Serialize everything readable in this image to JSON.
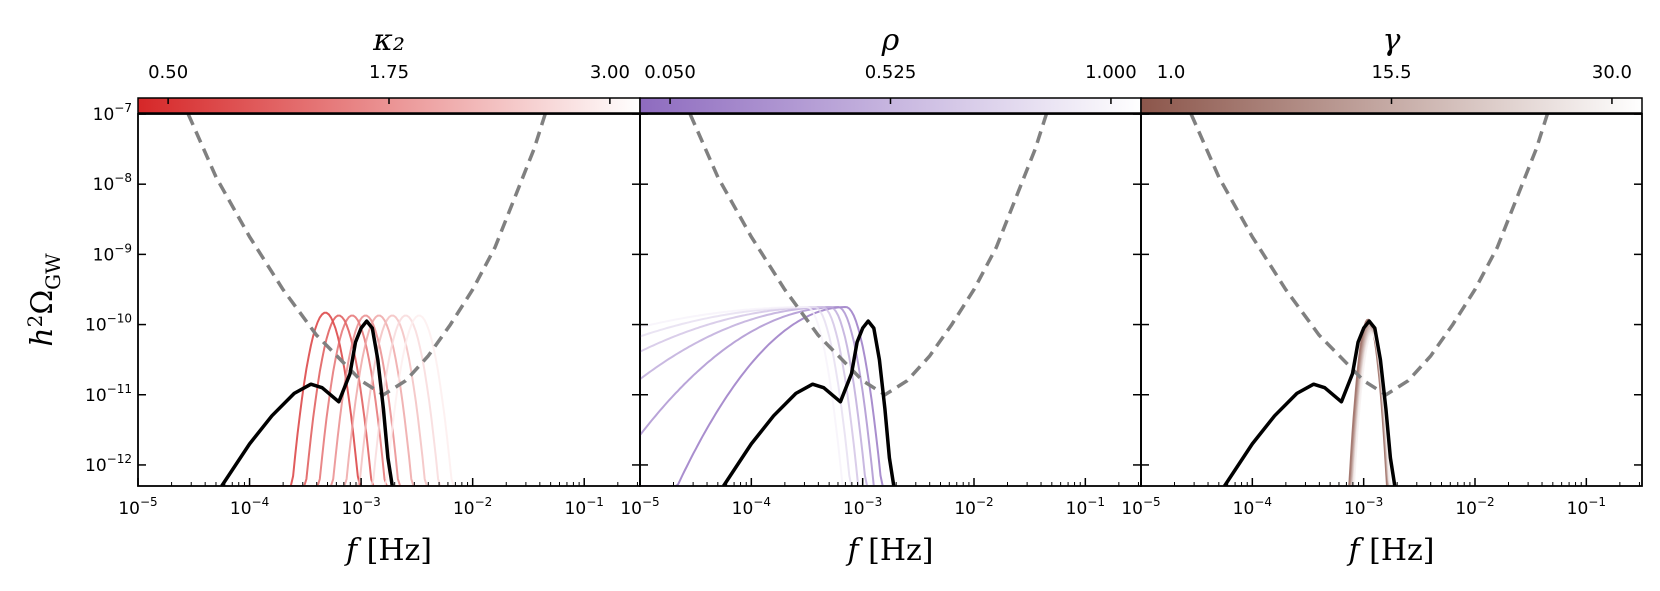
{
  "chart_data": {
    "type": "line",
    "ylabel": "h²Ω_GW",
    "xlabel_var": "f",
    "xlabel_unit": "[Hz]",
    "xscale": "log",
    "yscale": "log",
    "xlim_log10": [
      -5,
      -0.5
    ],
    "ylim_log10": [
      -12.3,
      -7
    ],
    "x_ticks": [
      {
        "base": "10",
        "exp": "−5"
      },
      {
        "base": "10",
        "exp": "−4"
      },
      {
        "base": "10",
        "exp": "−3"
      },
      {
        "base": "10",
        "exp": "−2"
      },
      {
        "base": "10",
        "exp": "−1"
      }
    ],
    "y_ticks": [
      {
        "base": "10",
        "exp": "−7"
      },
      {
        "base": "10",
        "exp": "−8"
      },
      {
        "base": "10",
        "exp": "−9"
      },
      {
        "base": "10",
        "exp": "−10"
      },
      {
        "base": "10",
        "exp": "−11"
      },
      {
        "base": "10",
        "exp": "−12"
      }
    ],
    "sensitivity_curve": {
      "style": "dashed",
      "color": "#808080",
      "log10_f": [
        -4.55,
        -4.3,
        -4.0,
        -3.7,
        -3.4,
        -3.0,
        -2.8,
        -2.6,
        -2.4,
        -2.2,
        -2.0,
        -1.8,
        -1.6,
        -1.45,
        -1.35
      ],
      "log10_omega": [
        -7.0,
        -7.9,
        -8.75,
        -9.5,
        -10.15,
        -10.8,
        -11.0,
        -10.8,
        -10.45,
        -10.0,
        -9.5,
        -8.9,
        -8.1,
        -7.5,
        -7.0
      ]
    },
    "benchmark_curve": {
      "color": "#000000",
      "log10_f": [
        -4.25,
        -4.0,
        -3.8,
        -3.6,
        -3.45,
        -3.35,
        -3.2,
        -3.1,
        -3.05,
        -3.0,
        -2.95,
        -2.9,
        -2.85,
        -2.8,
        -2.76,
        -2.72
      ],
      "log10_omega": [
        -12.3,
        -11.7,
        -11.3,
        -10.98,
        -10.85,
        -10.9,
        -11.1,
        -10.7,
        -10.25,
        -10.05,
        -9.95,
        -10.05,
        -10.5,
        -11.2,
        -11.9,
        -12.3
      ]
    },
    "panels": [
      {
        "parameter": "κ₂",
        "colorbar_ticks": [
          "0.50",
          "1.75",
          "3.00"
        ],
        "colorbar_range": [
          0.5,
          3.0
        ],
        "color_start": "#d62728",
        "color_end": "#ffffff",
        "variant_family": "shifted-peak",
        "variant_count": 8
      },
      {
        "parameter": "ρ",
        "colorbar_ticks": [
          "0.050",
          "0.525",
          "1.000"
        ],
        "colorbar_range": [
          0.05,
          1.0
        ],
        "color_start": "#8e6bbf",
        "color_end": "#ffffff",
        "variant_family": "broad-shoulder",
        "variant_count": 6
      },
      {
        "parameter": "γ",
        "colorbar_ticks": [
          "1.0",
          "15.5",
          "30.0"
        ],
        "colorbar_range": [
          1.0,
          30.0
        ],
        "color_start": "#8c564b",
        "color_end": "#ffffff",
        "variant_family": "overlapping",
        "variant_count": 8
      }
    ]
  }
}
